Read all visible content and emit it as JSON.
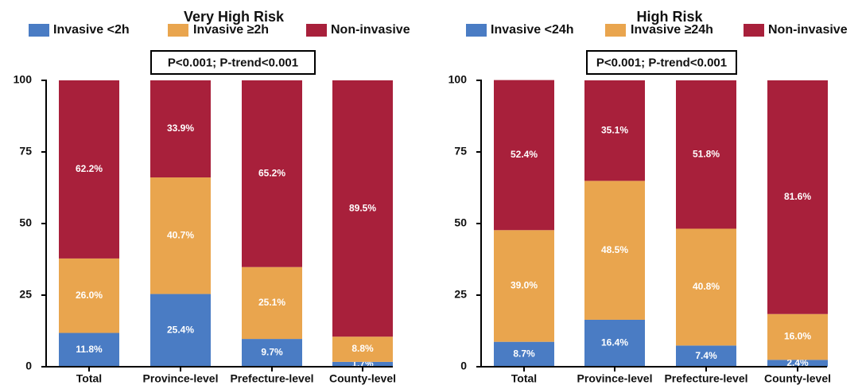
{
  "chart_data": [
    {
      "type": "bar",
      "stacked": true,
      "title": "Very High Risk",
      "annotation": "P<0.001; P-trend<0.001",
      "categories": [
        "Total",
        "Province-level",
        "Prefecture-level",
        "County-level"
      ],
      "series": [
        {
          "name": "Invasive <2h",
          "color": "#4A7CC4",
          "values": [
            11.8,
            25.4,
            9.7,
            1.7
          ],
          "labels": [
            "11.8%",
            "25.4%",
            "9.7%",
            "1.7%"
          ]
        },
        {
          "name": "Invasive ≥2h",
          "color": "#E9A54E",
          "values": [
            26.0,
            40.7,
            25.1,
            8.8
          ],
          "labels": [
            "26.0%",
            "40.7%",
            "25.1%",
            "8.8%"
          ]
        },
        {
          "name": "Non-invasive",
          "color": "#A8203B",
          "values": [
            62.2,
            33.9,
            65.2,
            89.5
          ],
          "labels": [
            "62.2%",
            "33.9%",
            "65.2%",
            "89.5%"
          ]
        }
      ],
      "ylim": [
        0,
        100
      ],
      "yticks": [
        0,
        25,
        50,
        75,
        100
      ],
      "xlabel": "",
      "ylabel": ""
    },
    {
      "type": "bar",
      "stacked": true,
      "title": "High Risk",
      "annotation": "P<0.001; P-trend<0.001",
      "categories": [
        "Total",
        "Province-level",
        "Prefecture-level",
        "County-level"
      ],
      "series": [
        {
          "name": "Invasive <24h",
          "color": "#4A7CC4",
          "values": [
            8.7,
            16.4,
            7.4,
            2.4
          ],
          "labels": [
            "8.7%",
            "16.4%",
            "7.4%",
            "2.4%"
          ]
        },
        {
          "name": "Invasive ≥24h",
          "color": "#E9A54E",
          "values": [
            39.0,
            48.5,
            40.8,
            16.0
          ],
          "labels": [
            "39.0%",
            "48.5%",
            "40.8%",
            "16.0%"
          ]
        },
        {
          "name": "Non-invasive",
          "color": "#A8203B",
          "values": [
            52.4,
            35.1,
            51.8,
            81.6
          ],
          "labels": [
            "52.4%",
            "35.1%",
            "51.8%",
            "81.6%"
          ]
        }
      ],
      "ylim": [
        0,
        100
      ],
      "yticks": [
        0,
        25,
        50,
        75,
        100
      ],
      "xlabel": "",
      "ylabel": ""
    }
  ]
}
